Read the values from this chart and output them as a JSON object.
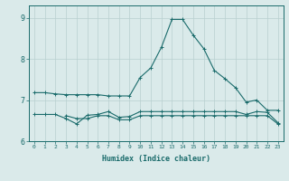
{
  "bg_color": "#daeaea",
  "grid_color": "#b8d0d0",
  "line_color": "#1a6b6b",
  "line1_x": [
    0,
    1,
    2,
    3,
    4,
    5,
    6,
    7,
    8,
    9,
    10,
    11,
    12,
    13,
    14,
    15,
    16,
    17,
    18,
    19,
    20,
    21,
    22,
    23
  ],
  "line1_y": [
    7.18,
    7.18,
    7.15,
    7.13,
    7.13,
    7.13,
    7.13,
    7.1,
    7.1,
    7.1,
    7.55,
    7.78,
    8.28,
    8.96,
    8.96,
    8.58,
    8.25,
    7.72,
    7.52,
    7.3,
    6.95,
    7.0,
    6.75,
    6.75
  ],
  "line2_x": [
    0,
    1,
    2,
    3,
    4,
    5,
    6,
    7,
    8,
    9,
    10,
    11,
    12,
    13,
    14,
    15,
    16,
    17,
    18,
    19,
    20,
    21,
    22,
    23
  ],
  "line2_y": [
    6.65,
    6.65,
    6.65,
    6.55,
    6.42,
    6.63,
    6.65,
    6.72,
    6.58,
    6.6,
    6.72,
    6.72,
    6.72,
    6.72,
    6.72,
    6.72,
    6.72,
    6.72,
    6.72,
    6.72,
    6.65,
    6.72,
    6.7,
    6.45
  ],
  "line3_x": [
    3,
    4,
    5,
    6,
    7,
    8,
    9,
    10,
    11,
    12,
    13,
    14,
    15,
    16,
    17,
    18,
    19,
    20,
    21,
    22,
    23
  ],
  "line3_y": [
    6.62,
    6.55,
    6.55,
    6.62,
    6.62,
    6.52,
    6.52,
    6.62,
    6.62,
    6.62,
    6.62,
    6.62,
    6.62,
    6.62,
    6.62,
    6.62,
    6.62,
    6.62,
    6.62,
    6.62,
    6.42
  ],
  "xlabel": "Humidex (Indice chaleur)",
  "ylim": [
    6.0,
    9.3
  ],
  "xlim": [
    -0.5,
    23.5
  ],
  "yticks": [
    6,
    7,
    8,
    9
  ],
  "xticks": [
    0,
    1,
    2,
    3,
    4,
    5,
    6,
    7,
    8,
    9,
    10,
    11,
    12,
    13,
    14,
    15,
    16,
    17,
    18,
    19,
    20,
    21,
    22,
    23
  ]
}
